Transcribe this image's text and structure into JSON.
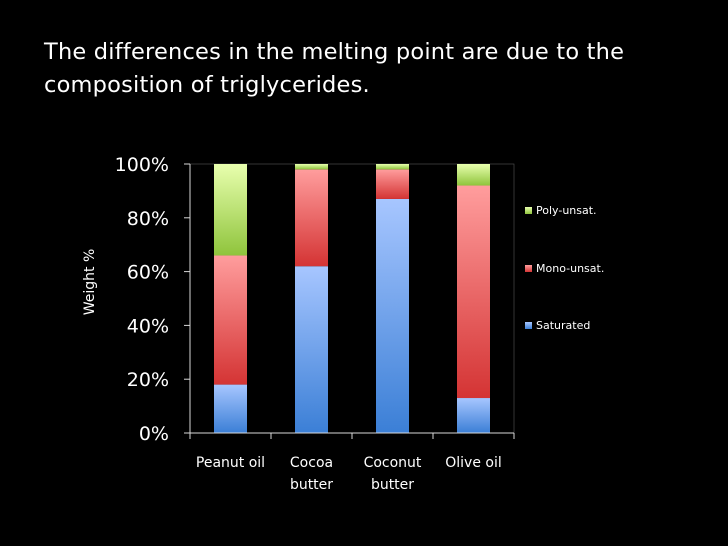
{
  "slide": {
    "title": "The differences in the melting point are due to the composition of triglycerides."
  },
  "chart_data": {
    "type": "bar",
    "stacked": true,
    "normalized": true,
    "title": "",
    "xlabel": "",
    "ylabel": "Weight %",
    "ylim": [
      0,
      100
    ],
    "yticks": [
      "0%",
      "20%",
      "40%",
      "60%",
      "80%",
      "100%"
    ],
    "categories": [
      [
        "Peanut oil"
      ],
      [
        "Cocoa",
        "butter"
      ],
      [
        "Coconut",
        "butter"
      ],
      [
        "Olive oil"
      ]
    ],
    "series": [
      {
        "name": "Saturated",
        "values": [
          18,
          62,
          87,
          13
        ],
        "color_top": "#a7c6ff",
        "color_bottom": "#3b7fd6"
      },
      {
        "name": "Mono-unsat.",
        "values": [
          48,
          36,
          11,
          79
        ],
        "color_top": "#ff9d9d",
        "color_bottom": "#d43434"
      },
      {
        "name": "Poly-unsat.",
        "values": [
          34,
          2,
          2,
          8
        ],
        "color_top": "#e8ffae",
        "color_bottom": "#8fc43c"
      }
    ],
    "legend": {
      "position": "right",
      "order": [
        "Poly-unsat.",
        "Mono-unsat.",
        "Saturated"
      ]
    },
    "grid": false,
    "colors": {
      "background": "#000000",
      "axis": "#d9d9d9",
      "text": "#ffffff"
    }
  }
}
